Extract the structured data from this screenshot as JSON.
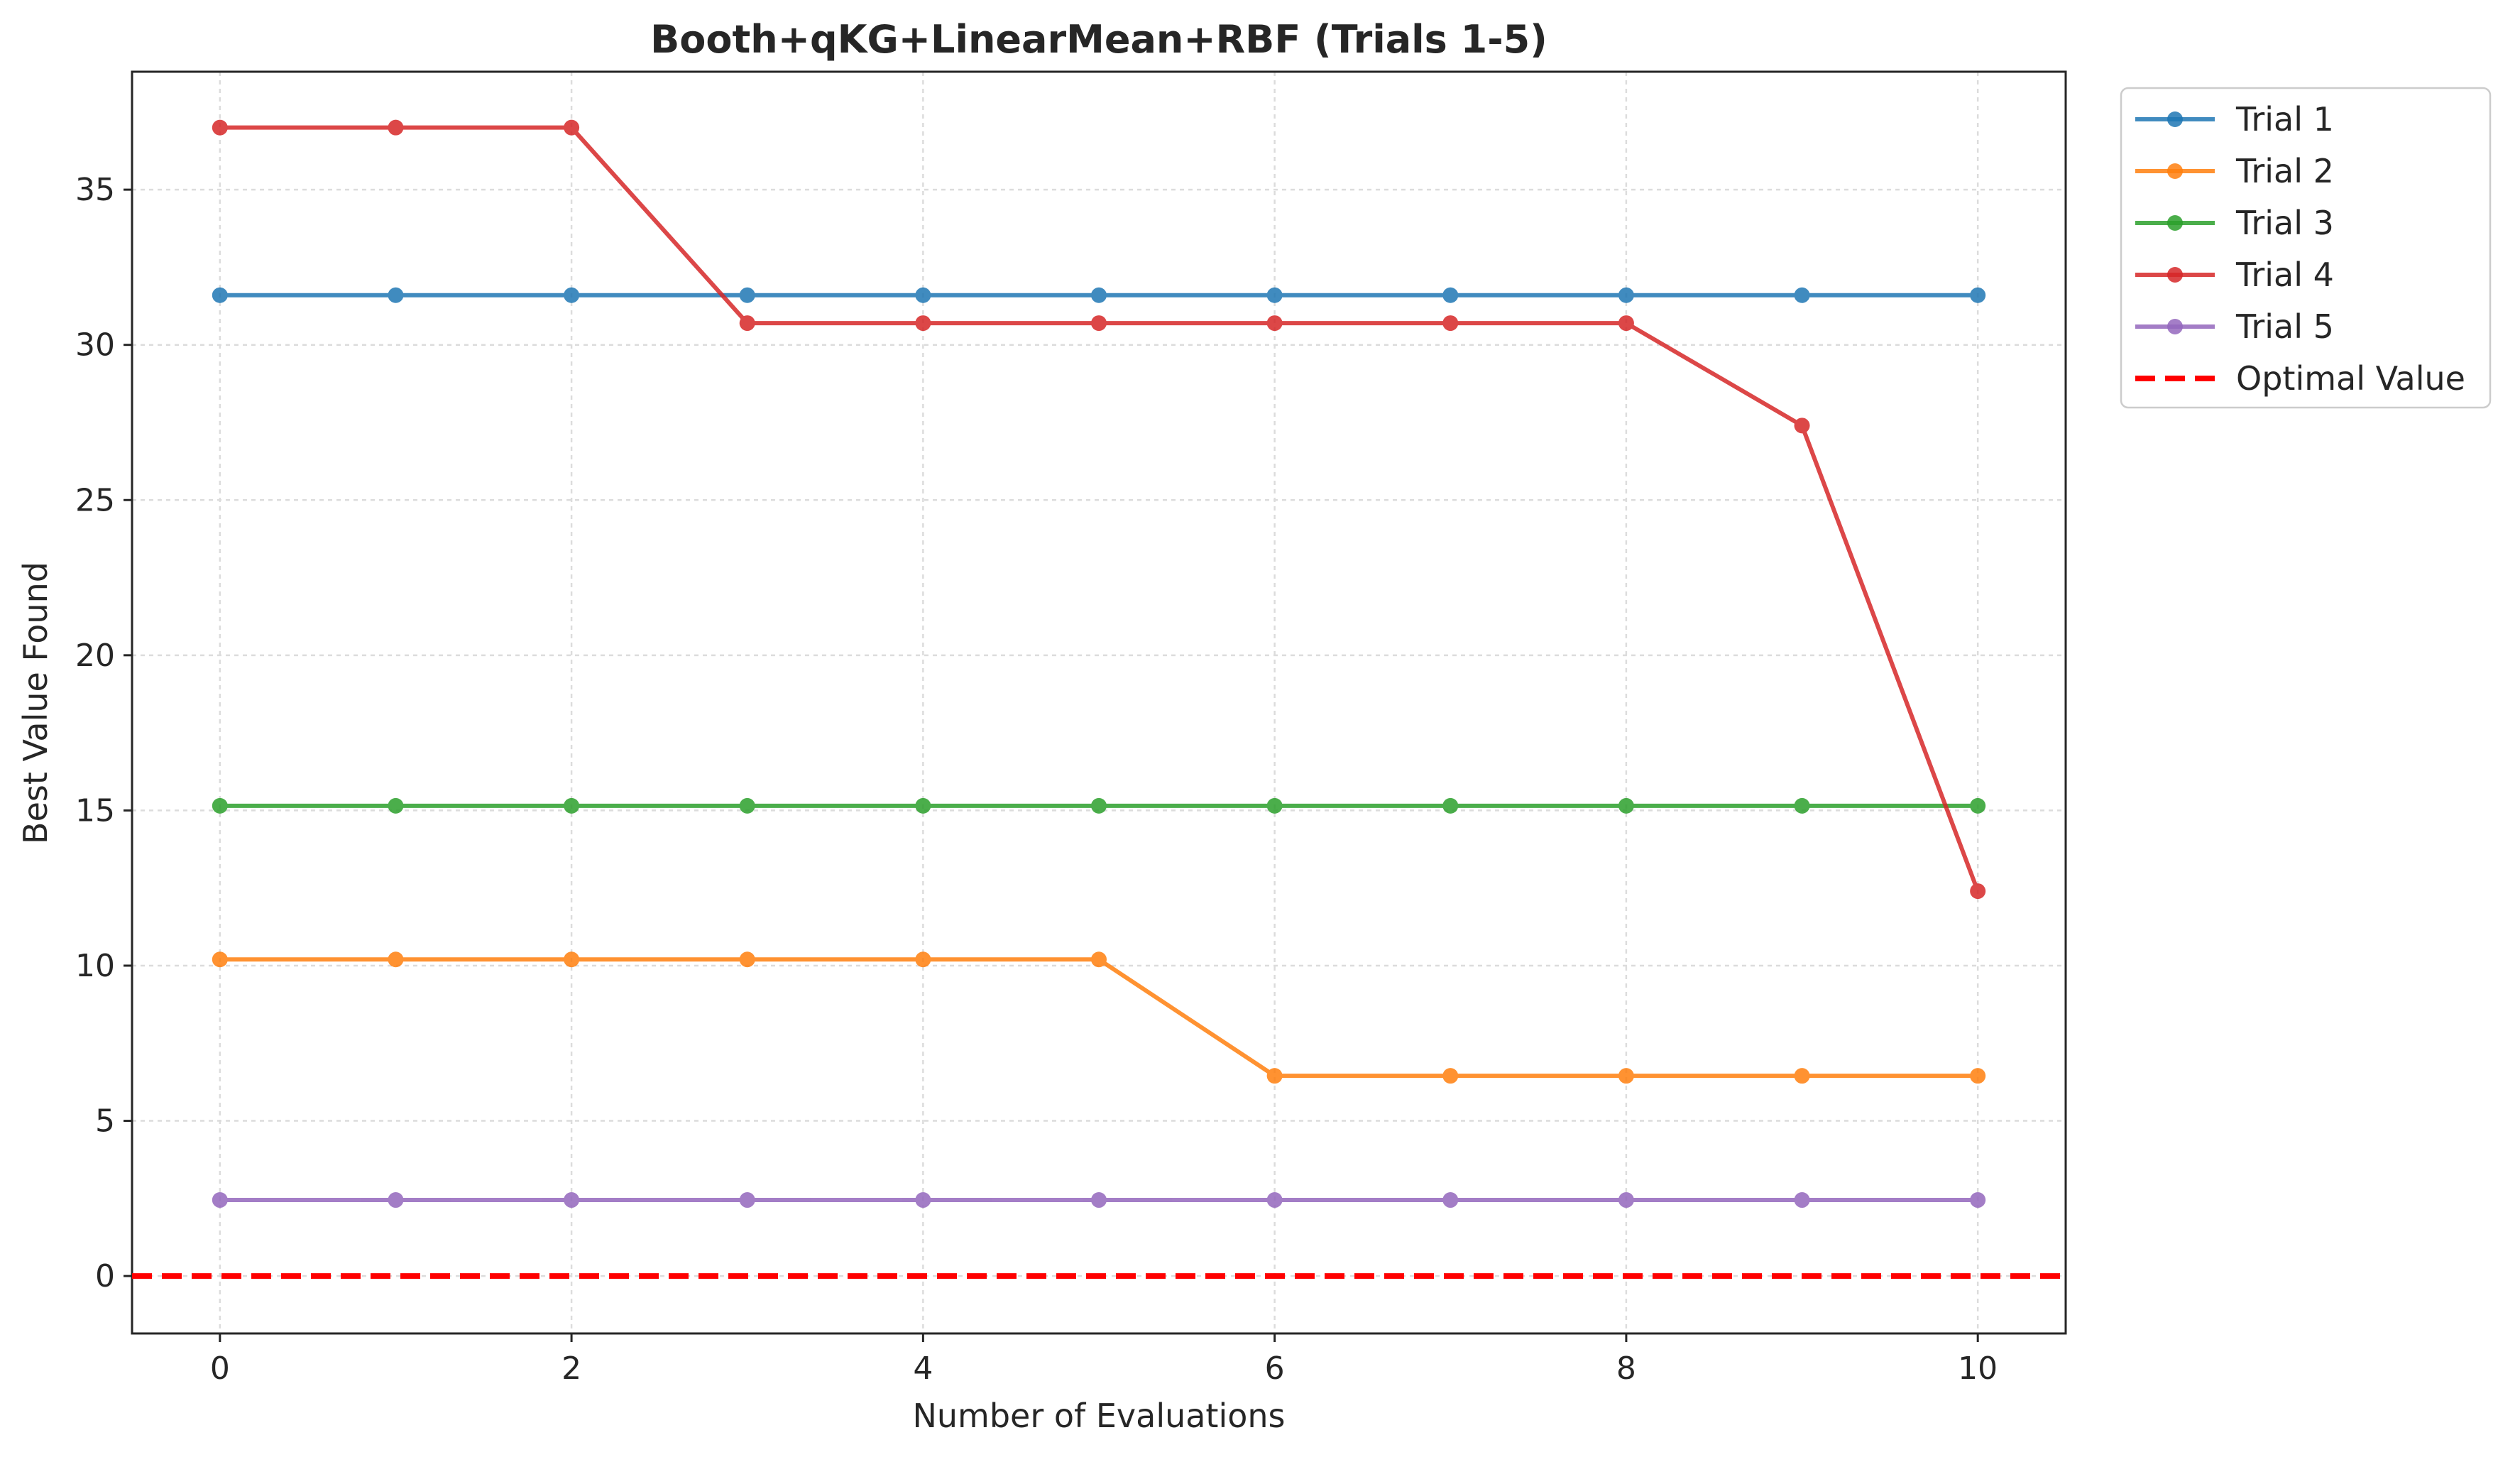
{
  "chart_data": {
    "type": "line",
    "title": "Booth+qKG+LinearMean+RBF (Trials 1-5)",
    "xlabel": "Number of Evaluations",
    "ylabel": "Best Value Found",
    "xlim": [
      -0.5,
      10.5
    ],
    "ylim": [
      -1.85,
      38.8
    ],
    "xticks": [
      0,
      2,
      4,
      6,
      8,
      10
    ],
    "yticks": [
      0,
      5,
      10,
      15,
      20,
      25,
      30,
      35
    ],
    "grid": true,
    "legend_position": "outside-top-right",
    "x": [
      0,
      1,
      2,
      3,
      4,
      5,
      6,
      7,
      8,
      9,
      10
    ],
    "series": [
      {
        "name": "Trial 1",
        "color": "#1f77b4",
        "values": [
          31.6,
          31.6,
          31.6,
          31.6,
          31.6,
          31.6,
          31.6,
          31.6,
          31.6,
          31.6,
          31.6
        ]
      },
      {
        "name": "Trial 2",
        "color": "#ff7f0e",
        "values": [
          10.2,
          10.2,
          10.2,
          10.2,
          10.2,
          10.2,
          6.45,
          6.45,
          6.45,
          6.45,
          6.45
        ]
      },
      {
        "name": "Trial 3",
        "color": "#2ca02c",
        "values": [
          15.15,
          15.15,
          15.15,
          15.15,
          15.15,
          15.15,
          15.15,
          15.15,
          15.15,
          15.15,
          15.15
        ]
      },
      {
        "name": "Trial 4",
        "color": "#d62728",
        "values": [
          37.0,
          37.0,
          37.0,
          30.7,
          30.7,
          30.7,
          30.7,
          30.7,
          30.7,
          27.4,
          12.4
        ]
      },
      {
        "name": "Trial 5",
        "color": "#9467bd",
        "values": [
          2.45,
          2.45,
          2.45,
          2.45,
          2.45,
          2.45,
          2.45,
          2.45,
          2.45,
          2.45,
          2.45
        ]
      }
    ],
    "reference_line": {
      "name": "Optimal Value",
      "y": 0,
      "color": "#ff0000",
      "style": "dashed"
    }
  }
}
